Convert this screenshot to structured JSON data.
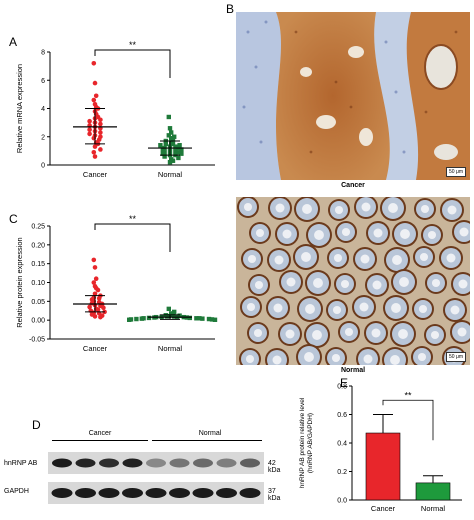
{
  "panels": {
    "A": "A",
    "B": "B",
    "C": "C",
    "D": "D",
    "E": "E"
  },
  "colors": {
    "cancer": "#e8262b",
    "normal": "#1f7a3a",
    "bar_normal": "#1e9a3c"
  },
  "chart_data": [
    {
      "id": "A",
      "type": "scatter",
      "ylabel": "Relative mRNA expression",
      "categories": [
        "Cancer",
        "Normal"
      ],
      "ylim": [
        0,
        8
      ],
      "yticks": [
        0,
        2,
        4,
        6,
        8
      ],
      "significance": "**",
      "series": [
        {
          "name": "Cancer",
          "marker": "circle",
          "mean": 2.7,
          "sd_low": 1.5,
          "sd_high": 4.0,
          "values": [
            7.2,
            5.8,
            4.9,
            4.6,
            4.3,
            4.1,
            4.0,
            3.8,
            3.6,
            3.4,
            3.3,
            3.2,
            3.1,
            3.0,
            2.9,
            2.8,
            2.7,
            2.6,
            2.5,
            2.4,
            2.3,
            2.2,
            2.1,
            2.0,
            1.9,
            1.8,
            1.6,
            1.5,
            1.3,
            1.1,
            0.9,
            0.6
          ]
        },
        {
          "name": "Normal",
          "marker": "square",
          "mean": 1.2,
          "sd_low": 0.7,
          "sd_high": 1.7,
          "values": [
            3.4,
            2.6,
            2.3,
            2.1,
            2.0,
            1.9,
            1.8,
            1.7,
            1.6,
            1.5,
            1.5,
            1.4,
            1.4,
            1.3,
            1.3,
            1.2,
            1.2,
            1.1,
            1.1,
            1.0,
            1.0,
            0.9,
            0.9,
            0.8,
            0.8,
            0.7,
            0.7,
            0.6,
            0.5,
            0.4,
            0.3,
            0.2
          ]
        }
      ]
    },
    {
      "id": "C",
      "type": "scatter",
      "ylabel": "Relative protein expression",
      "categories": [
        "Cancer",
        "Normal"
      ],
      "ylim": [
        -0.05,
        0.25
      ],
      "yticks": [
        "-0.05",
        "0.00",
        "0.05",
        "0.10",
        "0.15",
        "0.20",
        "0.25"
      ],
      "significance": "**",
      "series": [
        {
          "name": "Cancer",
          "marker": "circle",
          "mean": 0.043,
          "sd_low": 0.022,
          "sd_high": 0.065,
          "values": [
            0.16,
            0.14,
            0.11,
            0.1,
            0.09,
            0.085,
            0.08,
            0.07,
            0.065,
            0.06,
            0.058,
            0.055,
            0.05,
            0.048,
            0.045,
            0.043,
            0.04,
            0.038,
            0.035,
            0.033,
            0.03,
            0.028,
            0.025,
            0.022,
            0.02,
            0.018,
            0.015,
            0.012,
            0.01,
            0.008
          ]
        },
        {
          "name": "Normal",
          "marker": "square",
          "mean": 0.008,
          "sd_low": 0.002,
          "sd_high": 0.014,
          "values": [
            0.03,
            0.022,
            0.018,
            0.015,
            0.013,
            0.012,
            0.011,
            0.01,
            0.01,
            0.009,
            0.009,
            0.008,
            0.008,
            0.007,
            0.007,
            0.006,
            0.006,
            0.005,
            0.005,
            0.005,
            0.004,
            0.004,
            0.003,
            0.003,
            0.002,
            0.002,
            0.001,
            0.001
          ]
        }
      ]
    },
    {
      "id": "E",
      "type": "bar",
      "ylabel": "hnRNP AB protein relative level (hnRNP AB/GAPDH)",
      "categories": [
        "Cancer",
        "Normal"
      ],
      "values": [
        0.47,
        0.12
      ],
      "errors": [
        0.13,
        0.05
      ],
      "ylim": [
        0,
        0.8
      ],
      "yticks": [
        "0.0",
        "0.2",
        "0.4",
        "0.6",
        "0.8"
      ],
      "significance": "**"
    }
  ],
  "micrographs": {
    "top_label": "Cancer",
    "bottom_label": "Normal",
    "scalebar": "50 μm"
  },
  "blot": {
    "group_labels": [
      "Cancer",
      "Normal"
    ],
    "rows": [
      {
        "name": "hnRNP AB",
        "kda": "42 kDa"
      },
      {
        "name": "GAPDH",
        "kda": "37 kDa"
      }
    ]
  }
}
